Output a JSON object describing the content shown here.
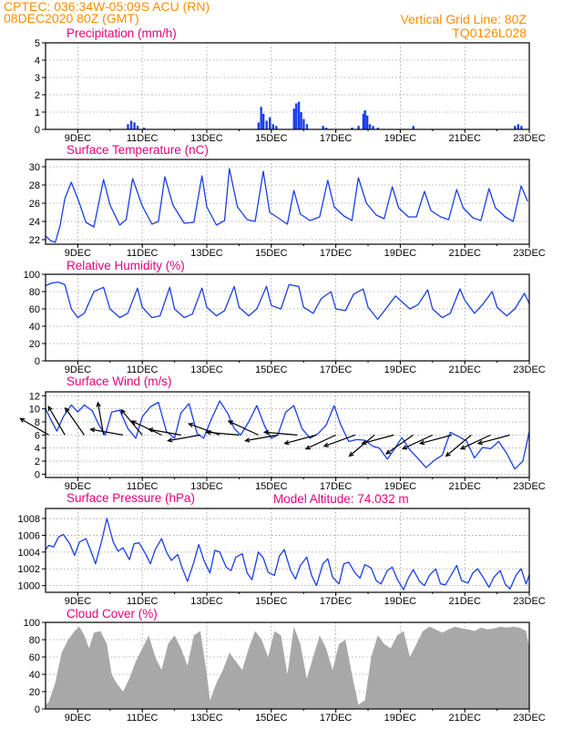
{
  "header": {
    "line1": "CPTEC:   036:34W-05:09S   ACU (RN)",
    "line2": "08DEC2020 80Z (GMT)",
    "grid_note": "Vertical Grid Line: 80Z",
    "model_code": "TQ0126L028",
    "pressure_note": "Model Altitude: 74.032 m"
  },
  "colors": {
    "header": "#ff8c00",
    "panel_title": "#e6007e",
    "series": "#1a3ee8",
    "bars": "#1a3ee8",
    "cloud_fill": "#a8a8a8",
    "wind_arrow": "#000000",
    "grid": "#9a9a9a"
  },
  "x_axis": {
    "start_day": 8,
    "end_day": 23,
    "tick_labels": [
      "9DEC",
      "11DEC",
      "13DEC",
      "15DEC",
      "17DEC",
      "19DEC",
      "21DEC",
      "23DEC"
    ],
    "tick_days": [
      9,
      11,
      13,
      15,
      17,
      19,
      21,
      23
    ]
  },
  "chart_data": [
    {
      "id": "precip",
      "type": "bar",
      "title": "Precipitation (mm/h)",
      "ylim": [
        0,
        5
      ],
      "yticks": [
        0,
        1,
        2,
        3,
        4,
        5
      ],
      "grid": true,
      "x_days": [
        10.55,
        10.65,
        10.75,
        10.85,
        11.05,
        14.6,
        14.68,
        14.75,
        14.85,
        14.95,
        15.05,
        15.15,
        15.7,
        15.77,
        15.85,
        15.92,
        16.0,
        16.1,
        16.6,
        16.7,
        17.5,
        17.7,
        17.85,
        17.9,
        17.97,
        18.05,
        18.15,
        18.3,
        19.4,
        22.55,
        22.65,
        22.75
      ],
      "values": [
        0.3,
        0.5,
        0.4,
        0.2,
        0.1,
        0.4,
        1.3,
        0.9,
        0.5,
        0.7,
        0.3,
        0.2,
        1.2,
        1.5,
        1.6,
        1.0,
        0.6,
        0.3,
        0.2,
        0.1,
        0.1,
        0.2,
        0.9,
        1.1,
        0.8,
        0.3,
        0.2,
        0.1,
        0.2,
        0.2,
        0.3,
        0.2
      ]
    },
    {
      "id": "temp",
      "type": "line",
      "title": "Surface Temperature (nC)",
      "ylim": [
        21.5,
        30.8
      ],
      "yticks": [
        22,
        24,
        26,
        28,
        30
      ],
      "grid": true,
      "x_days": [
        8.0,
        8.15,
        8.3,
        8.45,
        8.6,
        8.8,
        9.05,
        9.25,
        9.5,
        9.8,
        10.0,
        10.3,
        10.5,
        10.7,
        11.0,
        11.3,
        11.5,
        11.7,
        11.95,
        12.3,
        12.6,
        12.85,
        13.0,
        13.3,
        13.55,
        13.7,
        13.95,
        14.25,
        14.5,
        14.75,
        14.95,
        15.25,
        15.5,
        15.7,
        15.9,
        16.2,
        16.5,
        16.75,
        16.95,
        17.25,
        17.5,
        17.7,
        17.95,
        18.25,
        18.5,
        18.75,
        18.95,
        19.25,
        19.5,
        19.75,
        19.95,
        20.25,
        20.5,
        20.75,
        20.95,
        21.25,
        21.5,
        21.75,
        21.95,
        22.25,
        22.5,
        22.75,
        22.95
      ],
      "values": [
        22.4,
        21.9,
        21.7,
        23.5,
        26.5,
        28.3,
        26.0,
        23.9,
        23.4,
        28.6,
        25.8,
        23.6,
        24.2,
        28.7,
        25.7,
        23.7,
        24.0,
        28.9,
        25.8,
        23.8,
        23.9,
        29.0,
        25.6,
        23.6,
        24.1,
        29.8,
        25.6,
        24.2,
        24.0,
        29.5,
        25.0,
        24.3,
        23.7,
        27.4,
        24.8,
        24.1,
        24.5,
        28.5,
        25.6,
        24.6,
        24.1,
        28.8,
        26.0,
        24.7,
        24.3,
        27.8,
        25.5,
        24.5,
        24.5,
        27.3,
        25.2,
        24.5,
        24.2,
        27.5,
        25.5,
        24.4,
        24.1,
        27.6,
        25.5,
        24.5,
        24.0,
        27.9,
        26.2
      ]
    },
    {
      "id": "rh",
      "type": "line",
      "title": "Relative Humidity (%)",
      "ylim": [
        0,
        100
      ],
      "yticks": [
        0,
        20,
        40,
        60,
        80,
        100
      ],
      "grid": true,
      "x_days": [
        8.0,
        8.2,
        8.4,
        8.6,
        8.8,
        9.0,
        9.2,
        9.5,
        9.8,
        10.0,
        10.3,
        10.55,
        10.85,
        11.0,
        11.3,
        11.55,
        11.85,
        12.0,
        12.3,
        12.55,
        12.85,
        13.0,
        13.3,
        13.55,
        13.85,
        14.0,
        14.3,
        14.55,
        14.85,
        15.0,
        15.3,
        15.55,
        15.85,
        16.0,
        16.3,
        16.55,
        16.85,
        17.0,
        17.3,
        17.55,
        17.85,
        18.0,
        18.3,
        18.55,
        18.85,
        19.0,
        19.3,
        19.55,
        19.85,
        20.0,
        20.3,
        20.55,
        20.85,
        21.0,
        21.3,
        21.55,
        21.85,
        22.0,
        22.3,
        22.55,
        22.85,
        23.0
      ],
      "values": [
        87,
        90,
        91,
        88,
        60,
        50,
        55,
        80,
        85,
        60,
        50,
        55,
        84,
        62,
        50,
        52,
        85,
        60,
        50,
        54,
        84,
        62,
        52,
        58,
        86,
        62,
        52,
        60,
        86,
        64,
        60,
        88,
        86,
        62,
        55,
        72,
        80,
        60,
        58,
        77,
        83,
        62,
        48,
        60,
        75,
        70,
        60,
        65,
        82,
        60,
        50,
        55,
        83,
        70,
        55,
        65,
        80,
        62,
        52,
        60,
        78,
        66
      ]
    },
    {
      "id": "wind",
      "type": "line",
      "title": "Surface Wind (m/s)",
      "ylim": [
        -0.5,
        12.6
      ],
      "yticks": [
        0,
        2,
        4,
        6,
        8,
        10,
        12
      ],
      "grid": true,
      "x_days": [
        8.0,
        8.15,
        8.35,
        8.55,
        8.8,
        9.0,
        9.2,
        9.45,
        9.65,
        9.85,
        10.05,
        10.3,
        10.55,
        10.8,
        11.0,
        11.25,
        11.5,
        11.75,
        12.0,
        12.2,
        12.45,
        12.7,
        12.9,
        13.15,
        13.4,
        13.65,
        13.85,
        14.05,
        14.3,
        14.55,
        14.8,
        15.0,
        15.2,
        15.45,
        15.7,
        15.95,
        16.2,
        16.45,
        16.7,
        16.95,
        17.15,
        17.4,
        17.65,
        17.9,
        18.15,
        18.35,
        18.6,
        18.85,
        19.05,
        19.3,
        19.55,
        19.8,
        20.05,
        20.3,
        20.55,
        20.8,
        21.05,
        21.3,
        21.55,
        21.8,
        22.05,
        22.3,
        22.55,
        22.8,
        23.0
      ],
      "values": [
        10.0,
        8.5,
        6.6,
        8.8,
        10.6,
        9.5,
        10.6,
        9.7,
        7.6,
        6.0,
        9.5,
        9.8,
        7.0,
        5.5,
        8.8,
        10.3,
        11.0,
        6.5,
        5.5,
        9.4,
        10.8,
        6.2,
        5.5,
        8.5,
        11.2,
        9.3,
        7.0,
        6.0,
        8.0,
        10.5,
        7.3,
        5.5,
        6.0,
        9.5,
        10.5,
        7.0,
        5.5,
        6.2,
        7.5,
        10.5,
        7.6,
        5.0,
        5.3,
        5.2,
        4.3,
        4.0,
        2.3,
        4.1,
        5.6,
        3.7,
        2.4,
        1.0,
        2.1,
        2.9,
        6.4,
        5.8,
        5.1,
        2.5,
        4.1,
        3.9,
        5.0,
        3.2,
        0.8,
        2.0,
        6.5
      ],
      "barbs": [
        [
          8.1,
          150
        ],
        [
          8.6,
          120
        ],
        [
          9.2,
          125
        ],
        [
          9.8,
          100
        ],
        [
          10.4,
          170
        ],
        [
          11.0,
          130
        ],
        [
          11.6,
          155
        ],
        [
          12.2,
          170
        ],
        [
          12.8,
          190
        ],
        [
          13.4,
          160
        ],
        [
          14.0,
          175
        ],
        [
          14.6,
          155
        ],
        [
          15.2,
          190
        ],
        [
          15.8,
          175
        ],
        [
          16.4,
          195
        ],
        [
          17.0,
          205
        ],
        [
          17.6,
          200
        ],
        [
          18.2,
          220
        ],
        [
          18.8,
          195
        ],
        [
          19.4,
          215
        ],
        [
          20.0,
          205
        ],
        [
          20.6,
          195
        ],
        [
          21.2,
          220
        ],
        [
          21.8,
          205
        ],
        [
          22.4,
          195
        ]
      ]
    },
    {
      "id": "pres",
      "type": "line",
      "title": "Surface Pressure (hPa)",
      "ylim": [
        999.2,
        1009.2
      ],
      "yticks": [
        1000,
        1002,
        1004,
        1006,
        1008
      ],
      "grid": true,
      "x_days": [
        8.0,
        8.1,
        8.25,
        8.4,
        8.55,
        8.75,
        8.9,
        9.05,
        9.25,
        9.4,
        9.55,
        9.75,
        9.9,
        10.1,
        10.25,
        10.4,
        10.6,
        10.75,
        10.9,
        11.1,
        11.25,
        11.4,
        11.6,
        11.75,
        11.9,
        12.1,
        12.25,
        12.4,
        12.6,
        12.75,
        12.9,
        13.1,
        13.25,
        13.4,
        13.6,
        13.75,
        13.9,
        14.1,
        14.25,
        14.4,
        14.6,
        14.75,
        14.9,
        15.1,
        15.25,
        15.4,
        15.6,
        15.75,
        15.9,
        16.1,
        16.25,
        16.4,
        16.6,
        16.75,
        16.9,
        17.1,
        17.25,
        17.4,
        17.6,
        17.75,
        17.9,
        18.1,
        18.25,
        18.4,
        18.6,
        18.75,
        18.9,
        19.1,
        19.25,
        19.4,
        19.6,
        19.75,
        19.9,
        20.1,
        20.25,
        20.4,
        20.6,
        20.75,
        20.9,
        21.1,
        21.25,
        21.4,
        21.6,
        21.75,
        21.9,
        22.1,
        22.25,
        22.4,
        22.6,
        22.75,
        22.9,
        23.0
      ],
      "values": [
        1004.3,
        1004.8,
        1004.6,
        1005.8,
        1006.1,
        1005.0,
        1003.6,
        1005.2,
        1005.6,
        1004.2,
        1002.6,
        1005.5,
        1008.0,
        1005.2,
        1004.1,
        1004.5,
        1003.1,
        1005.0,
        1005.1,
        1003.8,
        1002.6,
        1004.3,
        1005.6,
        1004.0,
        1003.0,
        1003.7,
        1002.0,
        1000.5,
        1002.8,
        1004.9,
        1003.1,
        1001.5,
        1004.2,
        1004.0,
        1002.2,
        1001.8,
        1003.4,
        1003.8,
        1001.5,
        1000.7,
        1004.0,
        1003.3,
        1001.6,
        1001.2,
        1003.5,
        1004.3,
        1001.8,
        1000.8,
        1002.4,
        1003.4,
        1001.2,
        1000.0,
        1002.6,
        1003.2,
        1001.0,
        1000.2,
        1002.6,
        1002.8,
        1001.5,
        1000.9,
        1002.5,
        1002.1,
        1000.6,
        1000.2,
        1001.8,
        1002.2,
        1000.8,
        999.5,
        1000.9,
        1001.9,
        1000.5,
        1000.0,
        1001.2,
        1002.0,
        1000.2,
        1000.1,
        1001.4,
        1002.4,
        1000.6,
        1000.3,
        1001.5,
        1002.0,
        1000.8,
        999.8,
        1001.0,
        1001.8,
        1000.2,
        999.6,
        1001.3,
        1002.0,
        1000.2,
        1001.3
      ]
    },
    {
      "id": "cloud",
      "type": "area",
      "title": "Cloud Cover (%)",
      "ylim": [
        0,
        100
      ],
      "yticks": [
        0,
        20,
        40,
        60,
        80,
        100
      ],
      "grid": true,
      "x_days": [
        8.0,
        8.1,
        8.3,
        8.5,
        8.7,
        8.9,
        9.05,
        9.2,
        9.35,
        9.5,
        9.7,
        9.9,
        10.05,
        10.2,
        10.4,
        10.6,
        10.8,
        11.0,
        11.2,
        11.4,
        11.6,
        11.8,
        12.0,
        12.2,
        12.4,
        12.6,
        12.8,
        13.0,
        13.1,
        13.3,
        13.5,
        13.7,
        13.9,
        14.1,
        14.3,
        14.5,
        14.7,
        14.9,
        15.1,
        15.3,
        15.5,
        15.7,
        15.9,
        16.1,
        16.3,
        16.5,
        16.7,
        16.9,
        17.1,
        17.3,
        17.5,
        17.7,
        17.9,
        18.1,
        18.3,
        18.5,
        18.7,
        18.9,
        19.1,
        19.3,
        19.5,
        19.7,
        19.9,
        20.1,
        20.3,
        20.5,
        20.7,
        20.9,
        21.1,
        21.3,
        21.5,
        21.7,
        21.9,
        22.1,
        22.3,
        22.5,
        22.7,
        22.9,
        23.0
      ],
      "values": [
        5,
        8,
        30,
        65,
        80,
        90,
        95,
        85,
        70,
        88,
        90,
        75,
        40,
        30,
        20,
        35,
        55,
        70,
        85,
        60,
        45,
        75,
        85,
        70,
        50,
        85,
        90,
        40,
        10,
        30,
        45,
        65,
        55,
        45,
        70,
        90,
        80,
        60,
        90,
        85,
        40,
        95,
        75,
        35,
        60,
        85,
        70,
        45,
        75,
        80,
        40,
        5,
        10,
        60,
        85,
        75,
        70,
        85,
        90,
        60,
        75,
        90,
        95,
        92,
        88,
        92,
        95,
        93,
        92,
        90,
        94,
        92,
        93,
        95,
        94,
        95,
        94,
        90,
        70
      ]
    }
  ]
}
